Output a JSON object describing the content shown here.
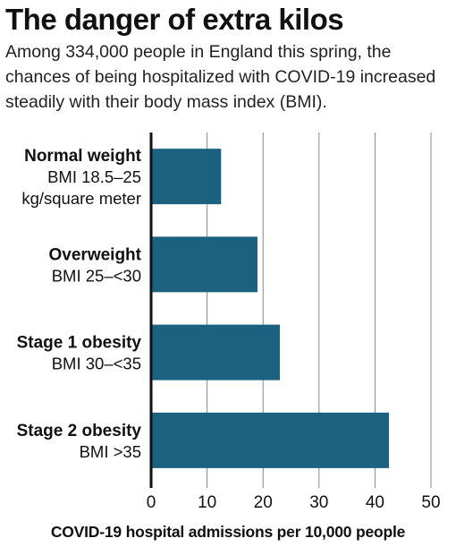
{
  "chart_data": {
    "type": "bar",
    "orientation": "horizontal",
    "title": "The danger of extra kilos",
    "subtitle": "Among 334,000 people in England this spring, the chances of being hospitalized with COVID-19 increased steadily with their body mass index (BMI).",
    "xlabel": "COVID-19 hospital admissions per 10,000 people",
    "ylabel": "",
    "xlim": [
      0,
      50
    ],
    "xticks": [
      0,
      10,
      20,
      30,
      40,
      50
    ],
    "grid": "vertical",
    "categories": [
      {
        "name": "Normal weight",
        "detail": [
          "BMI 18.5–25",
          "kg/square meter"
        ]
      },
      {
        "name": "Overweight",
        "detail": [
          "BMI 25–<30"
        ]
      },
      {
        "name": "Stage 1 obesity",
        "detail": [
          "BMI 30–<35"
        ]
      },
      {
        "name": "Stage 2 obesity",
        "detail": [
          "BMI >35"
        ]
      }
    ],
    "values": [
      12.5,
      19,
      23,
      42.5
    ],
    "colors": {
      "bar": "#1b6280",
      "grid": "#888888",
      "axis": "#111111"
    }
  }
}
